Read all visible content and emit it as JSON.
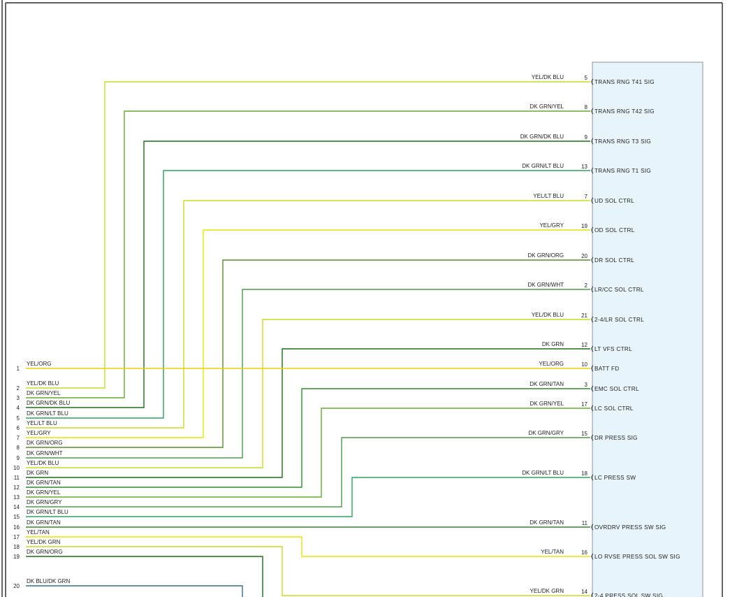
{
  "colors": {
    "module_fill": "#e8f4fb",
    "module_stroke": "#8a939a",
    "frame": "#000000",
    "wire_yellow": "#e6e600",
    "wire_yellow_org": "#f0d000",
    "wire_green": "#2e8b2e",
    "wire_dark_green": "#1a6e1a",
    "wire_green_blue": "#2ea060",
    "wire_blue_green": "#336f8f",
    "wire_green_yellow": "#66a830",
    "wire_yellow_green": "#c8dc20",
    "wire_green_gray": "#4c9a4c",
    "wire_green_orange": "#5a8a2a"
  },
  "module_pins": [
    {
      "pin": "5",
      "wire": "YEL/DK BLU",
      "signal": "TRANS RNG T41 SIG",
      "left": "2",
      "color": "wire_yellow_green"
    },
    {
      "pin": "8",
      "wire": "DK GRN/YEL",
      "signal": "TRANS RNG T42 SIG",
      "left": "3",
      "color": "wire_green_yellow"
    },
    {
      "pin": "9",
      "wire": "DK GRN/DK BLU",
      "signal": "TRANS RNG T3 SIG",
      "left": "4",
      "color": "wire_dark_green"
    },
    {
      "pin": "13",
      "wire": "DK GRN/LT BLU",
      "signal": "TRANS RNG T1 SIG",
      "left": "5",
      "color": "wire_green_blue"
    },
    {
      "pin": "7",
      "wire": "YEL/LT BLU",
      "signal": "UD SOL CTRL",
      "left": "6",
      "color": "wire_yellow_green"
    },
    {
      "pin": "19",
      "wire": "YEL/GRY",
      "signal": "OD SOL CTRL",
      "left": "7",
      "color": "wire_yellow"
    },
    {
      "pin": "20",
      "wire": "DK GRN/ORG",
      "signal": "DR SOL CTRL",
      "left": "8",
      "color": "wire_green_orange"
    },
    {
      "pin": "2",
      "wire": "DK GRN/WHT",
      "signal": "LR/CC SOL CTRL",
      "left": "9",
      "color": "wire_green_gray"
    },
    {
      "pin": "21",
      "wire": "YEL/DK BLU",
      "signal": "2-4/LR SOL CTRL",
      "left": "10",
      "color": "wire_yellow_green"
    },
    {
      "pin": "12",
      "wire": "DK GRN",
      "signal": "LT VFS CTRL",
      "left": "11",
      "color": "wire_dark_green"
    },
    {
      "pin": "10",
      "wire": "YEL/ORG",
      "signal": "BATT FD",
      "left": "1",
      "color": "wire_yellow_org"
    },
    {
      "pin": "3",
      "wire": "DK GRN/TAN",
      "signal": "EMC SOL CTRL",
      "left": "12",
      "color": "wire_green"
    },
    {
      "pin": "17",
      "wire": "DK GRN/YEL",
      "signal": "LC SOL CTRL",
      "left": "13",
      "color": "wire_green_yellow"
    },
    {
      "pin": "15",
      "wire": "DK GRN/GRY",
      "signal": "DR PRESS SIG",
      "left": "14",
      "color": "wire_green_gray"
    },
    {
      "pin": "18",
      "wire": "DK GRN/LT BLU",
      "signal": "LC PRESS SW",
      "left": "15",
      "color": "wire_green_blue"
    },
    {
      "pin": "11",
      "wire": "DK GRN/TAN",
      "signal": "OVRDRV PRESS SW SIG",
      "left": "16",
      "color": "wire_green"
    },
    {
      "pin": "16",
      "wire": "YEL/TAN",
      "signal": "LO RVSE PRESS SOL SW SIG",
      "left": "17",
      "color": "wire_yellow"
    },
    {
      "pin": "14",
      "wire": "YEL/DK GRN",
      "signal": "2-4 PRESS SOL SW SIG",
      "left": "18",
      "color": "wire_yellow_green"
    }
  ],
  "left_pins": [
    {
      "num": "1",
      "label": "YEL/ORG"
    },
    {
      "num": "2",
      "label": "YEL/DK BLU"
    },
    {
      "num": "3",
      "label": "DK GRN/YEL"
    },
    {
      "num": "4",
      "label": "DK GRN/DK BLU"
    },
    {
      "num": "5",
      "label": "DK GRN/LT BLU"
    },
    {
      "num": "6",
      "label": "YEL/LT BLU"
    },
    {
      "num": "7",
      "label": "YEL/GRY"
    },
    {
      "num": "8",
      "label": "DK GRN/ORG"
    },
    {
      "num": "9",
      "label": "DK GRN/WHT"
    },
    {
      "num": "10",
      "label": "YEL/DK BLU"
    },
    {
      "num": "11",
      "label": "DK GRN"
    },
    {
      "num": "12",
      "label": "DK GRN/TAN"
    },
    {
      "num": "13",
      "label": "DK GRN/YEL"
    },
    {
      "num": "14",
      "label": "DK GRN/GRY"
    },
    {
      "num": "15",
      "label": "DK GRN/LT BLU"
    },
    {
      "num": "16",
      "label": "DK GRN/TAN"
    },
    {
      "num": "17",
      "label": "YEL/TAN"
    },
    {
      "num": "18",
      "label": "YEL/DK GRN"
    },
    {
      "num": "19",
      "label": "DK GRN/ORG"
    },
    {
      "num": "20",
      "label": "DK BLU/DK GRN"
    }
  ],
  "extra_wires": [
    {
      "left": "19",
      "color": "wire_dark_green"
    },
    {
      "left": "20",
      "color": "wire_blue_green"
    }
  ]
}
